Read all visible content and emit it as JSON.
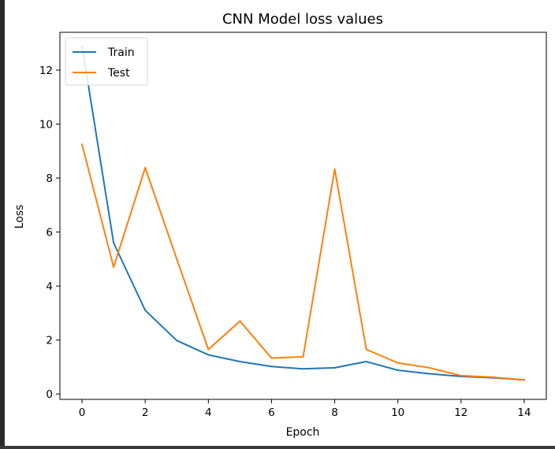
{
  "chart_data": {
    "type": "line",
    "title": "CNN Model loss values",
    "xlabel": "Epoch",
    "ylabel": "Loss",
    "x": [
      0,
      1,
      2,
      3,
      4,
      5,
      6,
      7,
      8,
      9,
      10,
      11,
      12,
      13,
      14
    ],
    "xlim": [
      -0.7,
      14.7
    ],
    "ylim": [
      -0.2,
      13.4
    ],
    "xticks": [
      0,
      2,
      4,
      6,
      8,
      10,
      12,
      14
    ],
    "yticks": [
      0,
      2,
      4,
      6,
      8,
      10,
      12
    ],
    "grid": false,
    "legend_position": "top-left",
    "series": [
      {
        "name": "Train",
        "color": "#1f77b4",
        "values": [
          12.9,
          5.6,
          3.1,
          1.98,
          1.45,
          1.2,
          1.02,
          0.93,
          0.97,
          1.2,
          0.88,
          0.75,
          0.65,
          0.6,
          0.52
        ]
      },
      {
        "name": "Test",
        "color": "#ff7f0e",
        "values": [
          9.25,
          4.7,
          8.38,
          5.0,
          1.65,
          2.7,
          1.33,
          1.38,
          8.33,
          1.65,
          1.15,
          0.97,
          0.68,
          0.62,
          0.52
        ]
      }
    ]
  }
}
